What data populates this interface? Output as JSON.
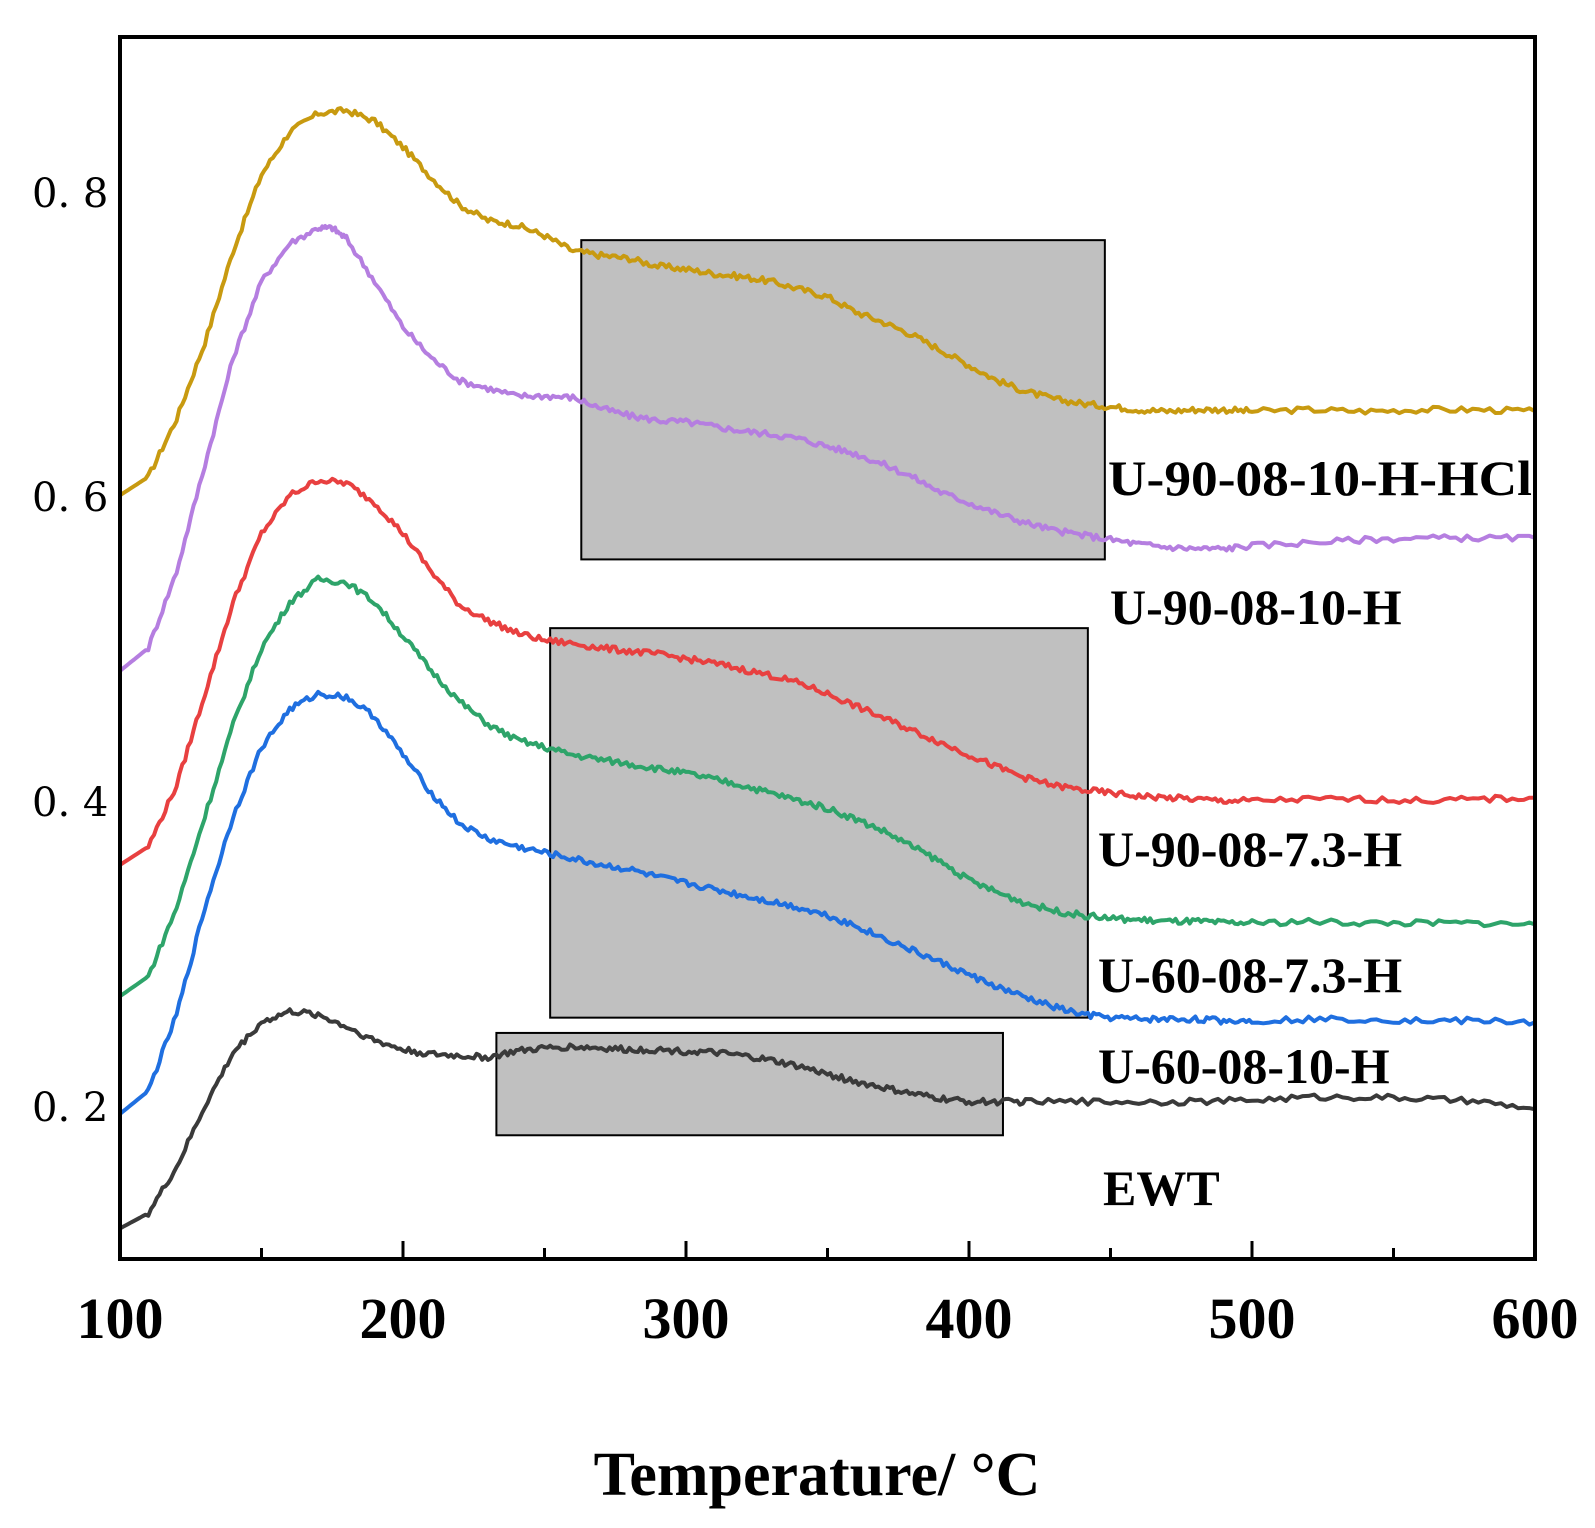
{
  "chart_data": {
    "type": "line",
    "title": "",
    "xlabel": "Temperature/ °C",
    "ylabel": "",
    "xlim": [
      100,
      600
    ],
    "ylim": [
      0.1,
      0.9
    ],
    "x_ticks": [
      100,
      200,
      300,
      400,
      500,
      600
    ],
    "x_tick_labels": [
      "100",
      "200",
      "300",
      "400",
      "500",
      "600"
    ],
    "y_ticks": [
      0.2,
      0.4,
      0.6,
      0.8
    ],
    "y_tick_labels": [
      "0. 2",
      "0. 4",
      "0. 6",
      "0. 8"
    ],
    "grid": false,
    "series": [
      {
        "name": "U-90-08-10-H-HCl",
        "label": "U-90-08-10-H-HCl",
        "color": "#c89a10",
        "points": [
          [
            100,
            0.6
          ],
          [
            110,
            0.612
          ],
          [
            120,
            0.65
          ],
          [
            130,
            0.7
          ],
          [
            140,
            0.76
          ],
          [
            150,
            0.81
          ],
          [
            160,
            0.838
          ],
          [
            170,
            0.85
          ],
          [
            180,
            0.852
          ],
          [
            190,
            0.845
          ],
          [
            200,
            0.828
          ],
          [
            210,
            0.808
          ],
          [
            220,
            0.79
          ],
          [
            230,
            0.78
          ],
          [
            240,
            0.777
          ],
          [
            250,
            0.77
          ],
          [
            260,
            0.76
          ],
          [
            270,
            0.757
          ],
          [
            280,
            0.755
          ],
          [
            290,
            0.75
          ],
          [
            300,
            0.748
          ],
          [
            310,
            0.745
          ],
          [
            320,
            0.743
          ],
          [
            330,
            0.74
          ],
          [
            340,
            0.735
          ],
          [
            350,
            0.73
          ],
          [
            360,
            0.72
          ],
          [
            370,
            0.713
          ],
          [
            380,
            0.705
          ],
          [
            390,
            0.695
          ],
          [
            400,
            0.685
          ],
          [
            410,
            0.675
          ],
          [
            420,
            0.668
          ],
          [
            430,
            0.663
          ],
          [
            440,
            0.66
          ],
          [
            450,
            0.658
          ],
          [
            460,
            0.656
          ],
          [
            470,
            0.655
          ],
          [
            480,
            0.656
          ],
          [
            490,
            0.656
          ],
          [
            500,
            0.655
          ],
          [
            520,
            0.656
          ],
          [
            540,
            0.655
          ],
          [
            560,
            0.656
          ],
          [
            580,
            0.656
          ],
          [
            600,
            0.655
          ]
        ]
      },
      {
        "name": "U-90-08-10-H",
        "label": "U-90-08-10-H",
        "color": "#b57ee0",
        "points": [
          [
            100,
            0.485
          ],
          [
            110,
            0.5
          ],
          [
            120,
            0.55
          ],
          [
            130,
            0.62
          ],
          [
            140,
            0.69
          ],
          [
            150,
            0.74
          ],
          [
            160,
            0.765
          ],
          [
            170,
            0.775
          ],
          [
            175,
            0.775
          ],
          [
            180,
            0.768
          ],
          [
            190,
            0.74
          ],
          [
            200,
            0.71
          ],
          [
            210,
            0.69
          ],
          [
            220,
            0.675
          ],
          [
            230,
            0.67
          ],
          [
            240,
            0.665
          ],
          [
            250,
            0.665
          ],
          [
            260,
            0.664
          ],
          [
            270,
            0.657
          ],
          [
            280,
            0.652
          ],
          [
            290,
            0.649
          ],
          [
            300,
            0.648
          ],
          [
            310,
            0.645
          ],
          [
            320,
            0.642
          ],
          [
            330,
            0.64
          ],
          [
            340,
            0.637
          ],
          [
            350,
            0.632
          ],
          [
            360,
            0.627
          ],
          [
            370,
            0.62
          ],
          [
            380,
            0.612
          ],
          [
            390,
            0.602
          ],
          [
            400,
            0.595
          ],
          [
            410,
            0.588
          ],
          [
            420,
            0.582
          ],
          [
            430,
            0.577
          ],
          [
            440,
            0.574
          ],
          [
            450,
            0.571
          ],
          [
            460,
            0.568
          ],
          [
            470,
            0.566
          ],
          [
            480,
            0.565
          ],
          [
            490,
            0.565
          ],
          [
            500,
            0.567
          ],
          [
            520,
            0.569
          ],
          [
            540,
            0.571
          ],
          [
            560,
            0.572
          ],
          [
            580,
            0.572
          ],
          [
            600,
            0.572
          ]
        ]
      },
      {
        "name": "U-90-08-7.3-H",
        "label": "U-90-08-7.3-H",
        "color": "#e84040",
        "points": [
          [
            100,
            0.358
          ],
          [
            110,
            0.37
          ],
          [
            120,
            0.41
          ],
          [
            130,
            0.47
          ],
          [
            140,
            0.53
          ],
          [
            150,
            0.575
          ],
          [
            160,
            0.6
          ],
          [
            170,
            0.61
          ],
          [
            180,
            0.608
          ],
          [
            190,
            0.595
          ],
          [
            200,
            0.575
          ],
          [
            210,
            0.55
          ],
          [
            220,
            0.528
          ],
          [
            230,
            0.518
          ],
          [
            240,
            0.51
          ],
          [
            250,
            0.505
          ],
          [
            260,
            0.503
          ],
          [
            270,
            0.5
          ],
          [
            280,
            0.498
          ],
          [
            290,
            0.496
          ],
          [
            300,
            0.493
          ],
          [
            310,
            0.49
          ],
          [
            320,
            0.486
          ],
          [
            330,
            0.482
          ],
          [
            340,
            0.477
          ],
          [
            350,
            0.47
          ],
          [
            360,
            0.462
          ],
          [
            370,
            0.454
          ],
          [
            380,
            0.446
          ],
          [
            390,
            0.438
          ],
          [
            400,
            0.43
          ],
          [
            410,
            0.422
          ],
          [
            420,
            0.415
          ],
          [
            430,
            0.41
          ],
          [
            440,
            0.407
          ],
          [
            450,
            0.405
          ],
          [
            460,
            0.403
          ],
          [
            470,
            0.402
          ],
          [
            480,
            0.401
          ],
          [
            490,
            0.4
          ],
          [
            500,
            0.4
          ],
          [
            520,
            0.401
          ],
          [
            540,
            0.401
          ],
          [
            560,
            0.4
          ],
          [
            580,
            0.401
          ],
          [
            600,
            0.402
          ]
        ]
      },
      {
        "name": "U-60-08-7.3-H",
        "label": "U-60-08-7.3-H",
        "color": "#2ea46a",
        "points": [
          [
            100,
            0.272
          ],
          [
            110,
            0.285
          ],
          [
            120,
            0.33
          ],
          [
            130,
            0.39
          ],
          [
            140,
            0.45
          ],
          [
            150,
            0.5
          ],
          [
            160,
            0.53
          ],
          [
            170,
            0.545
          ],
          [
            180,
            0.543
          ],
          [
            190,
            0.53
          ],
          [
            200,
            0.508
          ],
          [
            210,
            0.485
          ],
          [
            220,
            0.465
          ],
          [
            230,
            0.45
          ],
          [
            240,
            0.44
          ],
          [
            250,
            0.435
          ],
          [
            260,
            0.43
          ],
          [
            270,
            0.427
          ],
          [
            280,
            0.424
          ],
          [
            290,
            0.421
          ],
          [
            300,
            0.418
          ],
          [
            310,
            0.414
          ],
          [
            320,
            0.41
          ],
          [
            330,
            0.405
          ],
          [
            340,
            0.4
          ],
          [
            350,
            0.395
          ],
          [
            360,
            0.388
          ],
          [
            370,
            0.38
          ],
          [
            380,
            0.37
          ],
          [
            390,
            0.36
          ],
          [
            400,
            0.348
          ],
          [
            410,
            0.34
          ],
          [
            420,
            0.333
          ],
          [
            430,
            0.328
          ],
          [
            440,
            0.325
          ],
          [
            450,
            0.323
          ],
          [
            460,
            0.322
          ],
          [
            470,
            0.321
          ],
          [
            480,
            0.321
          ],
          [
            490,
            0.32
          ],
          [
            500,
            0.32
          ],
          [
            520,
            0.321
          ],
          [
            540,
            0.32
          ],
          [
            560,
            0.32
          ],
          [
            580,
            0.32
          ],
          [
            600,
            0.319
          ]
        ]
      },
      {
        "name": "U-60-08-10-H",
        "label": "U-60-08-10-H",
        "color": "#1f6fe0",
        "points": [
          [
            100,
            0.195
          ],
          [
            110,
            0.21
          ],
          [
            120,
            0.26
          ],
          [
            130,
            0.33
          ],
          [
            140,
            0.39
          ],
          [
            150,
            0.435
          ],
          [
            160,
            0.46
          ],
          [
            170,
            0.47
          ],
          [
            180,
            0.468
          ],
          [
            190,
            0.455
          ],
          [
            200,
            0.43
          ],
          [
            210,
            0.405
          ],
          [
            220,
            0.385
          ],
          [
            230,
            0.375
          ],
          [
            240,
            0.37
          ],
          [
            250,
            0.366
          ],
          [
            260,
            0.362
          ],
          [
            270,
            0.358
          ],
          [
            280,
            0.355
          ],
          [
            290,
            0.35
          ],
          [
            300,
            0.346
          ],
          [
            310,
            0.342
          ],
          [
            320,
            0.338
          ],
          [
            330,
            0.334
          ],
          [
            340,
            0.33
          ],
          [
            350,
            0.325
          ],
          [
            360,
            0.318
          ],
          [
            370,
            0.31
          ],
          [
            380,
            0.302
          ],
          [
            390,
            0.294
          ],
          [
            400,
            0.286
          ],
          [
            410,
            0.278
          ],
          [
            420,
            0.271
          ],
          [
            430,
            0.265
          ],
          [
            440,
            0.26
          ],
          [
            450,
            0.258
          ],
          [
            460,
            0.257
          ],
          [
            470,
            0.257
          ],
          [
            480,
            0.257
          ],
          [
            490,
            0.256
          ],
          [
            500,
            0.256
          ],
          [
            520,
            0.257
          ],
          [
            540,
            0.257
          ],
          [
            560,
            0.256
          ],
          [
            580,
            0.256
          ],
          [
            600,
            0.255
          ]
        ]
      },
      {
        "name": "EWT",
        "label": "EWT",
        "color": "#3a3a3a",
        "points": [
          [
            100,
            0.12
          ],
          [
            110,
            0.13
          ],
          [
            120,
            0.16
          ],
          [
            130,
            0.2
          ],
          [
            140,
            0.235
          ],
          [
            150,
            0.255
          ],
          [
            160,
            0.262
          ],
          [
            170,
            0.26
          ],
          [
            180,
            0.252
          ],
          [
            190,
            0.243
          ],
          [
            200,
            0.237
          ],
          [
            210,
            0.234
          ],
          [
            220,
            0.233
          ],
          [
            230,
            0.232
          ],
          [
            240,
            0.236
          ],
          [
            250,
            0.238
          ],
          [
            260,
            0.239
          ],
          [
            270,
            0.238
          ],
          [
            280,
            0.237
          ],
          [
            290,
            0.237
          ],
          [
            300,
            0.236
          ],
          [
            310,
            0.235
          ],
          [
            320,
            0.233
          ],
          [
            330,
            0.23
          ],
          [
            340,
            0.226
          ],
          [
            350,
            0.221
          ],
          [
            360,
            0.216
          ],
          [
            370,
            0.212
          ],
          [
            380,
            0.208
          ],
          [
            390,
            0.205
          ],
          [
            400,
            0.203
          ],
          [
            410,
            0.203
          ],
          [
            420,
            0.203
          ],
          [
            440,
            0.203
          ],
          [
            460,
            0.203
          ],
          [
            480,
            0.203
          ],
          [
            500,
            0.204
          ],
          [
            520,
            0.206
          ],
          [
            540,
            0.206
          ],
          [
            560,
            0.205
          ],
          [
            580,
            0.203
          ],
          [
            600,
            0.198
          ]
        ]
      }
    ],
    "highlight_boxes": [
      {
        "name": "box-upper",
        "x": [
          263,
          448
        ],
        "y": [
          0.558,
          0.767
        ]
      },
      {
        "name": "box-middle",
        "x": [
          252,
          442
        ],
        "y": [
          0.258,
          0.513
        ]
      },
      {
        "name": "box-lower",
        "x": [
          233,
          412
        ],
        "y": [
          0.181,
          0.248
        ]
      }
    ]
  }
}
